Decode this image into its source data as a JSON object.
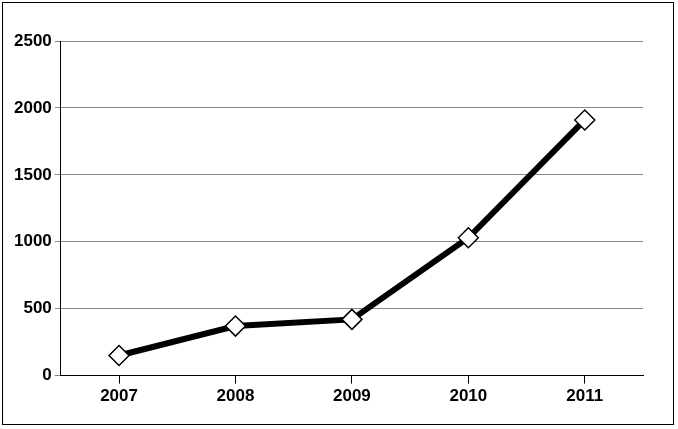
{
  "chart_data": {
    "type": "line",
    "categories": [
      "2007",
      "2008",
      "2009",
      "2010",
      "2011"
    ],
    "values": [
      150,
      370,
      420,
      1030,
      1910
    ],
    "color": "#000000",
    "marker": "diamond",
    "ylim": [
      0,
      2500
    ],
    "yticks": [
      0,
      500,
      1000,
      1500,
      2000,
      2500
    ],
    "grid": true
  }
}
